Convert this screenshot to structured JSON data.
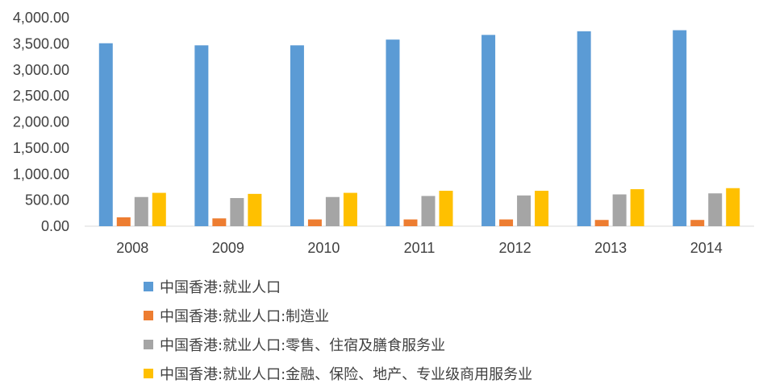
{
  "chart_data": {
    "type": "bar",
    "categories": [
      "2008",
      "2009",
      "2010",
      "2011",
      "2012",
      "2013",
      "2014"
    ],
    "series": [
      {
        "name": "中国香港:就业人口",
        "color": "#5B9BD5",
        "values": [
          3510,
          3470,
          3470,
          3580,
          3670,
          3740,
          3760
        ]
      },
      {
        "name": "中国香港:就业人口:制造业",
        "color": "#ED7D31",
        "values": [
          170,
          150,
          130,
          130,
          130,
          120,
          120
        ]
      },
      {
        "name": "中国香港:就业人口:零售、住宿及膳食服务业",
        "color": "#A5A5A5",
        "values": [
          560,
          540,
          560,
          580,
          590,
          610,
          630
        ]
      },
      {
        "name": "中国香港:就业人口:金融、保险、地产、专业级商用服务业",
        "color": "#FFC000",
        "values": [
          640,
          620,
          640,
          680,
          680,
          710,
          730
        ]
      }
    ],
    "y_ticks": [
      "0.00",
      "500.00",
      "1,000.00",
      "1,500.00",
      "2,000.00",
      "2,500.00",
      "3,000.00",
      "3,500.00",
      "4,000.00"
    ],
    "ylim": [
      0,
      4000
    ],
    "title": "",
    "xlabel": "",
    "ylabel": "",
    "grid": false,
    "legend_position": "bottom"
  }
}
